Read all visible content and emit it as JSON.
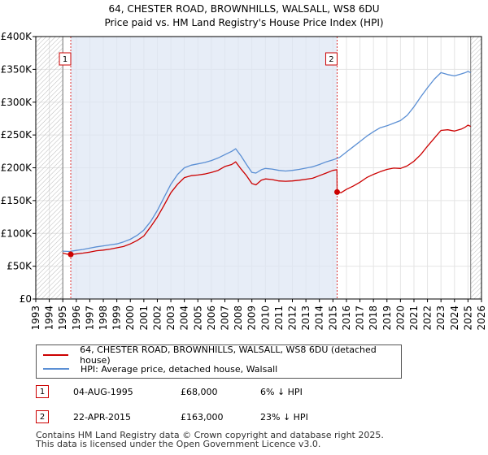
{
  "chart_data": {
    "type": "line",
    "title": "64, CHESTER ROAD, BROWNHILLS, WALSALL, WS8 6DU",
    "subtitle": "Price paid vs. HM Land Registry's House Price Index (HPI)",
    "xlabel": "",
    "ylabel": "",
    "xlim": [
      1993,
      2026
    ],
    "ylim": [
      0,
      400000
    ],
    "x_ticks": [
      "1993",
      "1994",
      "1995",
      "1996",
      "1997",
      "1998",
      "1999",
      "2000",
      "2001",
      "2002",
      "2003",
      "2004",
      "2005",
      "2006",
      "2007",
      "2008",
      "2009",
      "2010",
      "2011",
      "2012",
      "2013",
      "2014",
      "2015",
      "2016",
      "2017",
      "2018",
      "2019",
      "2020",
      "2021",
      "2022",
      "2023",
      "2024",
      "2025",
      "2026"
    ],
    "y_ticks": [
      {
        "value": 0,
        "label": "£0"
      },
      {
        "value": 50000,
        "label": "£50K"
      },
      {
        "value": 100000,
        "label": "£100K"
      },
      {
        "value": 150000,
        "label": "£150K"
      },
      {
        "value": 200000,
        "label": "£200K"
      },
      {
        "value": 250000,
        "label": "£250K"
      },
      {
        "value": 300000,
        "label": "£300K"
      },
      {
        "value": 350000,
        "label": "£350K"
      },
      {
        "value": 400000,
        "label": "£400K"
      }
    ],
    "hatch_regions": [
      [
        1993,
        1995.0
      ],
      [
        2025.2,
        2026
      ]
    ],
    "shaded_region": [
      1995.59,
      2015.31
    ],
    "series": [
      {
        "name": "64, CHESTER ROAD, BROWNHILLS, WALSALL, WS8 6DU (detached house)",
        "color": "#cc0000",
        "x": [
          1995.0,
          1995.3,
          1995.59,
          1995.9,
          1996.5,
          1997.0,
          1997.5,
          1998.0,
          1998.5,
          1999.0,
          1999.5,
          2000.0,
          2000.5,
          2001.0,
          2001.5,
          2002.0,
          2002.5,
          2003.0,
          2003.5,
          2004.0,
          2004.5,
          2005.0,
          2005.5,
          2006.0,
          2006.5,
          2007.0,
          2007.5,
          2007.8,
          2008.2,
          2008.6,
          2009.0,
          2009.3,
          2009.7,
          2010.0,
          2010.5,
          2011.0,
          2011.5,
          2012.0,
          2012.5,
          2013.0,
          2013.5,
          2014.0,
          2014.5,
          2015.0,
          2015.3,
          2015.31,
          2015.6,
          2016.0,
          2016.5,
          2017.0,
          2017.5,
          2018.0,
          2018.5,
          2019.0,
          2019.5,
          2020.0,
          2020.5,
          2021.0,
          2021.5,
          2022.0,
          2022.5,
          2023.0,
          2023.5,
          2024.0,
          2024.5,
          2024.8,
          2025.0,
          2025.2
        ],
        "values": [
          70000,
          68500,
          68000,
          68500,
          70000,
          71500,
          73500,
          74500,
          76000,
          78000,
          80000,
          84000,
          89000,
          96000,
          110000,
          125000,
          143000,
          162000,
          175000,
          185000,
          188000,
          189000,
          190500,
          193000,
          196000,
          202000,
          205000,
          209000,
          198000,
          188000,
          176000,
          174000,
          181000,
          183000,
          182000,
          180000,
          179500,
          180000,
          181000,
          182500,
          184000,
          188000,
          192000,
          196000,
          197000,
          163000,
          162000,
          167000,
          172000,
          178000,
          185000,
          190000,
          194000,
          197500,
          199500,
          199000,
          203000,
          210000,
          220000,
          233000,
          245000,
          257000,
          258000,
          256000,
          259000,
          262000,
          265000,
          263000
        ]
      },
      {
        "name": "HPI: Average price, detached house, Walsall",
        "color": "#5b8fd4",
        "x": [
          1995.0,
          1995.5,
          1996.0,
          1996.5,
          1997.0,
          1997.5,
          1998.0,
          1998.5,
          1999.0,
          1999.5,
          2000.0,
          2000.5,
          2001.0,
          2001.5,
          2002.0,
          2002.5,
          2003.0,
          2003.5,
          2004.0,
          2004.5,
          2005.0,
          2005.5,
          2006.0,
          2006.5,
          2007.0,
          2007.5,
          2007.8,
          2008.2,
          2008.6,
          2009.0,
          2009.3,
          2009.7,
          2010.0,
          2010.5,
          2011.0,
          2011.5,
          2012.0,
          2012.5,
          2013.0,
          2013.5,
          2014.0,
          2014.5,
          2015.0,
          2015.5,
          2016.0,
          2016.5,
          2017.0,
          2017.5,
          2018.0,
          2018.5,
          2019.0,
          2019.5,
          2020.0,
          2020.5,
          2021.0,
          2021.5,
          2022.0,
          2022.5,
          2023.0,
          2023.5,
          2024.0,
          2024.5,
          2024.8,
          2025.0,
          2025.2
        ],
        "values": [
          73000,
          72500,
          74000,
          75500,
          77500,
          79500,
          81000,
          82500,
          84000,
          87000,
          91000,
          97000,
          105000,
          118000,
          135000,
          155000,
          175000,
          190000,
          200000,
          204000,
          206000,
          208000,
          211000,
          215000,
          220000,
          225000,
          229000,
          218000,
          205000,
          193000,
          192000,
          197000,
          199000,
          198000,
          196000,
          195000,
          196000,
          197500,
          199500,
          201500,
          205000,
          209000,
          212000,
          216000,
          224000,
          232000,
          240000,
          248000,
          255000,
          261000,
          264000,
          268000,
          272000,
          280000,
          293000,
          308000,
          322000,
          335000,
          345000,
          342000,
          340000,
          343000,
          345000,
          347000,
          345000
        ]
      }
    ],
    "annotations": [
      {
        "label": "1",
        "x": 1995.59,
        "y": 68000
      },
      {
        "label": "2",
        "x": 2015.31,
        "y": 163000
      }
    ]
  },
  "sales": [
    {
      "num": "1",
      "date": "04-AUG-1995",
      "price": "£68,000",
      "hpi": "6% ↓ HPI"
    },
    {
      "num": "2",
      "date": "22-APR-2015",
      "price": "£163,000",
      "hpi": "23% ↓ HPI"
    }
  ],
  "footer": {
    "line1": "Contains HM Land Registry data © Crown copyright and database right 2025.",
    "line2": "This data is licensed under the Open Government Licence v3.0."
  }
}
